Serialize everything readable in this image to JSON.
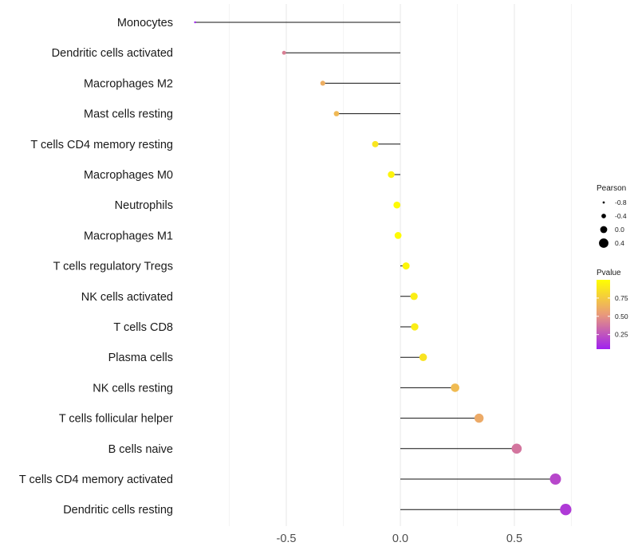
{
  "chart_data": {
    "type": "lollipop",
    "title": "",
    "xlabel": "",
    "ylabel": "",
    "xlim": [
      -1.0,
      0.72
    ],
    "x_ticks": [
      -0.5,
      0.0,
      0.5
    ],
    "x_tick_labels": [
      "-0.5",
      "0.0",
      "0.5"
    ],
    "categories": [
      "Monocytes",
      "Dendritic cells activated",
      "Macrophages M2",
      "Mast cells resting",
      "T cells CD4 memory resting",
      "Macrophages M0",
      "Neutrophils",
      "Macrophages M1",
      "T cells regulatory  Tregs ",
      "NK cells activated",
      "T cells CD8",
      "Plasma cells",
      "NK cells resting",
      "T cells follicular helper",
      "B cells naive",
      "T cells CD4 memory activated",
      "Dendritic cells resting"
    ],
    "values": [
      -0.9,
      -0.51,
      -0.34,
      -0.28,
      -0.11,
      -0.04,
      -0.015,
      -0.01,
      0.025,
      0.06,
      0.063,
      0.1,
      0.24,
      0.345,
      0.51,
      0.68,
      0.725
    ],
    "pvalues": [
      0.05,
      0.42,
      0.62,
      0.67,
      0.88,
      0.95,
      0.98,
      0.98,
      0.96,
      0.92,
      0.92,
      0.87,
      0.68,
      0.6,
      0.38,
      0.2,
      0.15
    ],
    "size_legend": {
      "title": "Pearson",
      "labels": [
        "-0.8",
        "-0.4",
        "0.0",
        "0.4"
      ],
      "values": [
        -0.8,
        -0.4,
        0.0,
        0.4
      ]
    },
    "color_legend": {
      "title": "Pvalue",
      "labels": [
        "0.75",
        "0.50",
        "0.25"
      ],
      "values": [
        0.75,
        0.5,
        0.25
      ],
      "range": [
        0.05,
        1.0
      ],
      "low_color": "#a020f0",
      "mid_color": "#e99a7a",
      "high_color": "#ffff00"
    },
    "grid": true
  }
}
